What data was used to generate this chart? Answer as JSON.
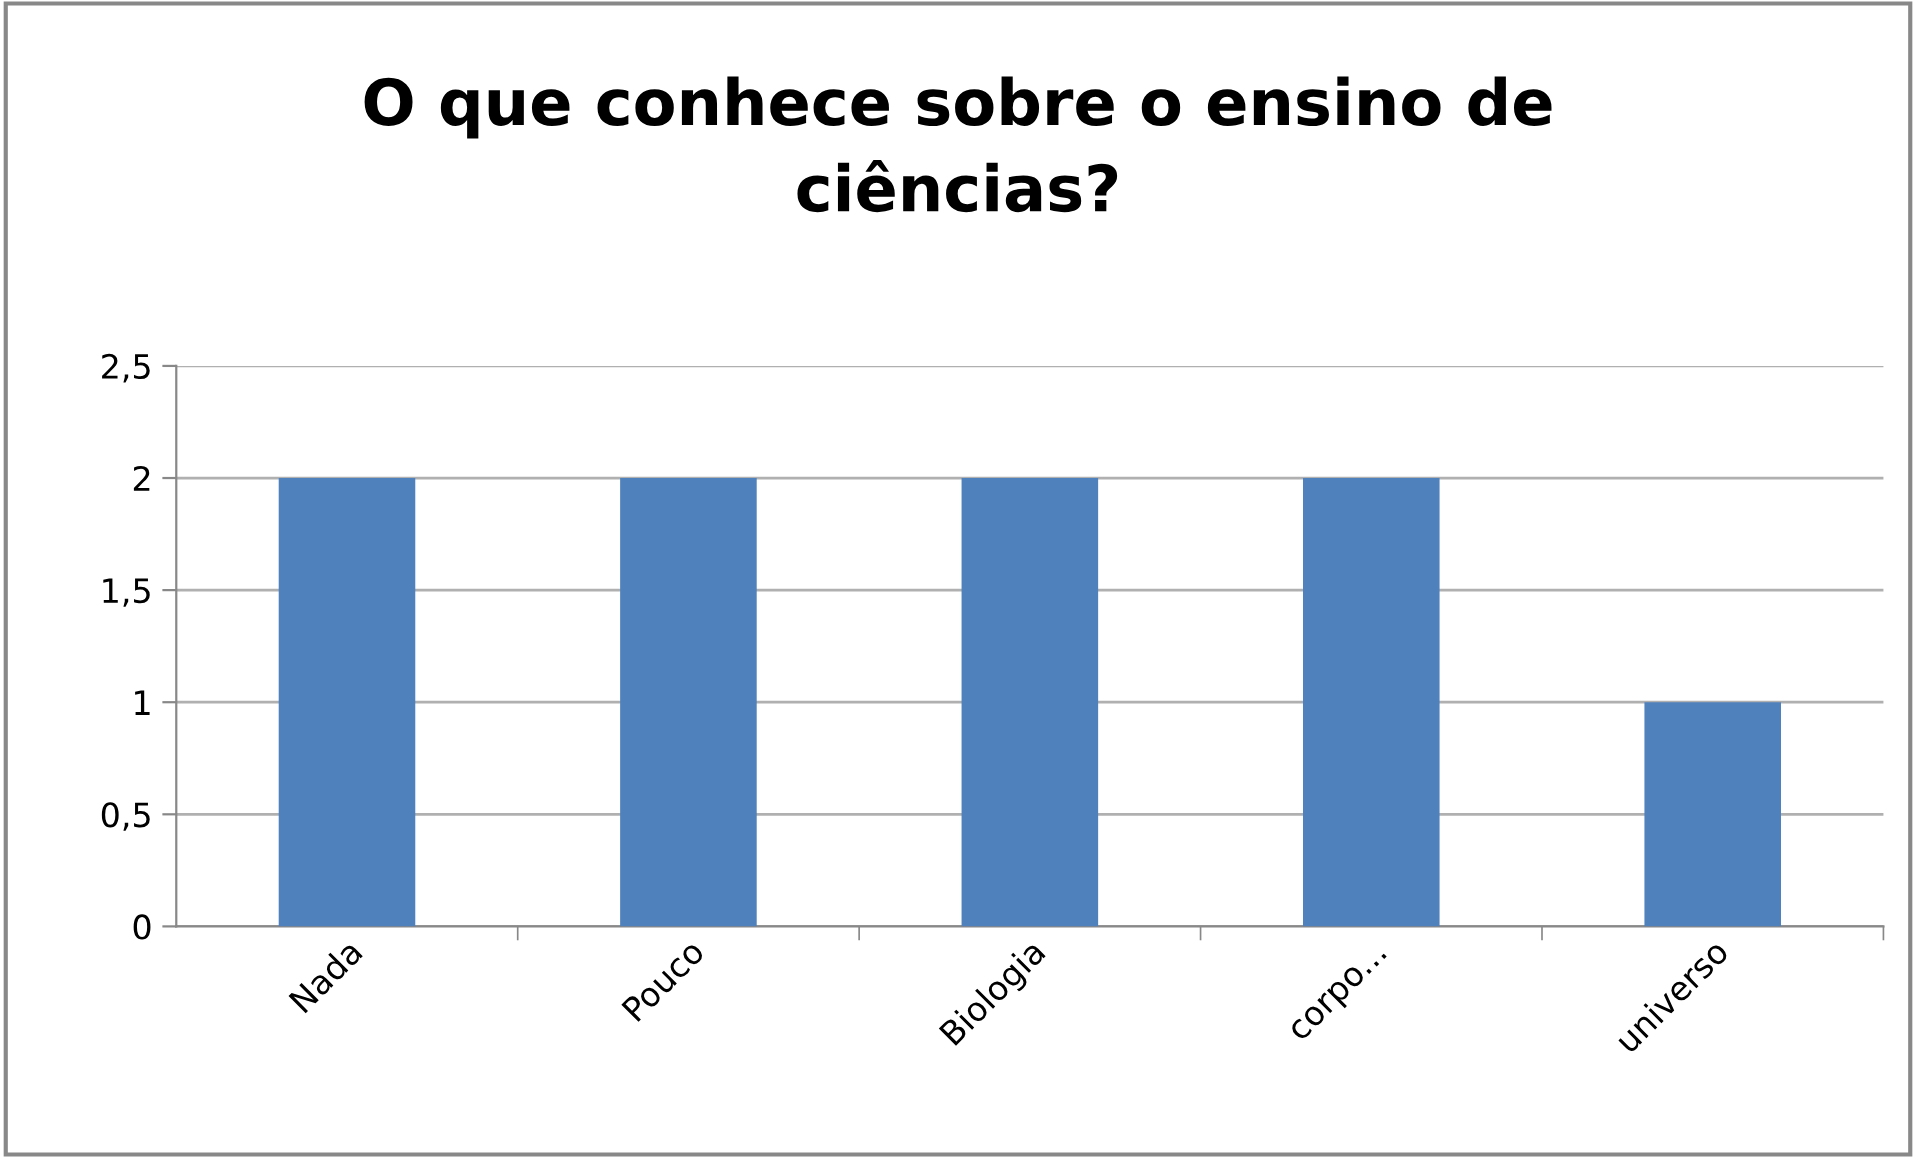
{
  "chart_data": {
    "type": "bar",
    "title": "O que conhece sobre o ensino de\nciências?",
    "categories": [
      "Nada",
      "Pouco",
      "Biologia",
      "corpo...",
      "universo"
    ],
    "values": [
      2,
      2,
      2,
      2,
      1
    ],
    "color": "#4f81bd",
    "ylim": [
      0,
      2.5
    ],
    "yticks": [
      0,
      {
        "value": 0.5,
        "label": "0,5"
      },
      1,
      {
        "value": 1.5,
        "label": "1,5"
      },
      2,
      {
        "value": 2.5,
        "label": "2,5"
      }
    ],
    "grid": "y",
    "legend": false
  }
}
